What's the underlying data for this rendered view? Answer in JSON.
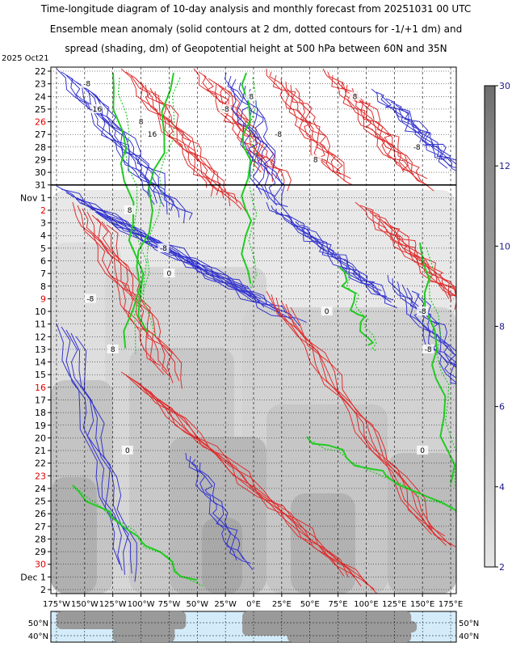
{
  "title": {
    "line1": "Time-longitude diagram of 10-day analysis and monthly forecast from 20251031 00 UTC",
    "line2": "Ensemble mean anomaly (solid contours at 2 dm, dotted contours for -1/+1 dm) and",
    "line3": "spread (shading, dm) of Geopotential height at 500 hPa between 60N and 35N"
  },
  "colors": {
    "positive_contour": "#e03030",
    "negative_contour": "#3535d0",
    "zero_contour": "#22cc22",
    "shade_light": "#e6e6e6",
    "shade_dark": "#888888",
    "map_ocean": "#d4ecfa",
    "map_land": "#9a9a9a",
    "weekend_label": "#e00000"
  },
  "chart_data": {
    "type": "heatmap",
    "corner_label": "2025 Oct21",
    "analysis_end_label": "31",
    "y_ticks": [
      {
        "label": "22",
        "weekend": false
      },
      {
        "label": "23",
        "weekend": false
      },
      {
        "label": "24",
        "weekend": false
      },
      {
        "label": "25",
        "weekend": false
      },
      {
        "label": "26",
        "weekend": true
      },
      {
        "label": "27",
        "weekend": false
      },
      {
        "label": "28",
        "weekend": false
      },
      {
        "label": "29",
        "weekend": false
      },
      {
        "label": "30",
        "weekend": false
      },
      {
        "label": "31",
        "weekend": false
      },
      {
        "label": "Nov 1",
        "weekend": false
      },
      {
        "label": "2",
        "weekend": true
      },
      {
        "label": "3",
        "weekend": false
      },
      {
        "label": "4",
        "weekend": false
      },
      {
        "label": "5",
        "weekend": false
      },
      {
        "label": "6",
        "weekend": false
      },
      {
        "label": "7",
        "weekend": false
      },
      {
        "label": "8",
        "weekend": false
      },
      {
        "label": "9",
        "weekend": true
      },
      {
        "label": "10",
        "weekend": false
      },
      {
        "label": "11",
        "weekend": false
      },
      {
        "label": "12",
        "weekend": false
      },
      {
        "label": "13",
        "weekend": false
      },
      {
        "label": "14",
        "weekend": false
      },
      {
        "label": "15",
        "weekend": false
      },
      {
        "label": "16",
        "weekend": true
      },
      {
        "label": "17",
        "weekend": false
      },
      {
        "label": "18",
        "weekend": false
      },
      {
        "label": "19",
        "weekend": false
      },
      {
        "label": "20",
        "weekend": false
      },
      {
        "label": "21",
        "weekend": false
      },
      {
        "label": "22",
        "weekend": false
      },
      {
        "label": "23",
        "weekend": true
      },
      {
        "label": "24",
        "weekend": false
      },
      {
        "label": "25",
        "weekend": false
      },
      {
        "label": "26",
        "weekend": false
      },
      {
        "label": "27",
        "weekend": false
      },
      {
        "label": "28",
        "weekend": false
      },
      {
        "label": "29",
        "weekend": false
      },
      {
        "label": "30",
        "weekend": true
      },
      {
        "label": "Dec 1",
        "weekend": false
      },
      {
        "label": "2",
        "weekend": false
      }
    ],
    "x_ticks": [
      "175°W",
      "150°W",
      "125°W",
      "100°W",
      "75°W",
      "50°W",
      "25°W",
      "0°E",
      "25°E",
      "50°E",
      "75°E",
      "100°E",
      "125°E",
      "150°E",
      "175°E"
    ],
    "x_tick_values": [
      -175,
      -150,
      -125,
      -100,
      -75,
      -50,
      -25,
      0,
      25,
      50,
      75,
      100,
      125,
      150,
      175
    ],
    "xlim": [
      -180,
      180
    ],
    "grid": true,
    "colorbar": {
      "ticks": [
        30,
        12,
        10,
        8,
        6,
        4,
        2
      ],
      "tick_labels": [
        "30",
        "12",
        "10",
        "8",
        "6",
        "4",
        "2"
      ],
      "range": [
        2,
        30
      ],
      "placement": "right"
    },
    "map_strip": {
      "lat_labels": [
        "50°N",
        "40°N"
      ]
    },
    "contour_labels": [
      {
        "text": "-8",
        "lon": -148,
        "day": 23
      },
      {
        "text": "-16",
        "lon": -140,
        "day": 25
      },
      {
        "text": "8",
        "lon": -100,
        "day": 26
      },
      {
        "text": "16",
        "lon": -90,
        "day": 27
      },
      {
        "text": "-8",
        "lon": -25,
        "day": 25
      },
      {
        "text": "8",
        "lon": -2,
        "day": 24
      },
      {
        "text": "-8",
        "lon": 22,
        "day": 27
      },
      {
        "text": "8",
        "lon": 55,
        "day": 29
      },
      {
        "text": "8",
        "lon": 90,
        "day": 24
      },
      {
        "text": "-8",
        "lon": 145,
        "day": 28
      },
      {
        "text": "8",
        "lon": -110,
        "day": 33
      },
      {
        "text": "-8",
        "lon": -80,
        "day": 36
      },
      {
        "text": "0",
        "lon": -75,
        "day": 38
      },
      {
        "text": "-8",
        "lon": -145,
        "day": 40
      },
      {
        "text": "8",
        "lon": -125,
        "day": 44
      },
      {
        "text": "0",
        "lon": 65,
        "day": 41
      },
      {
        "text": "-8",
        "lon": 150,
        "day": 41
      },
      {
        "text": "-8",
        "lon": 155,
        "day": 44
      },
      {
        "text": "0",
        "lon": -112,
        "day": 52
      },
      {
        "text": "0",
        "lon": 150,
        "day": 52
      }
    ]
  }
}
